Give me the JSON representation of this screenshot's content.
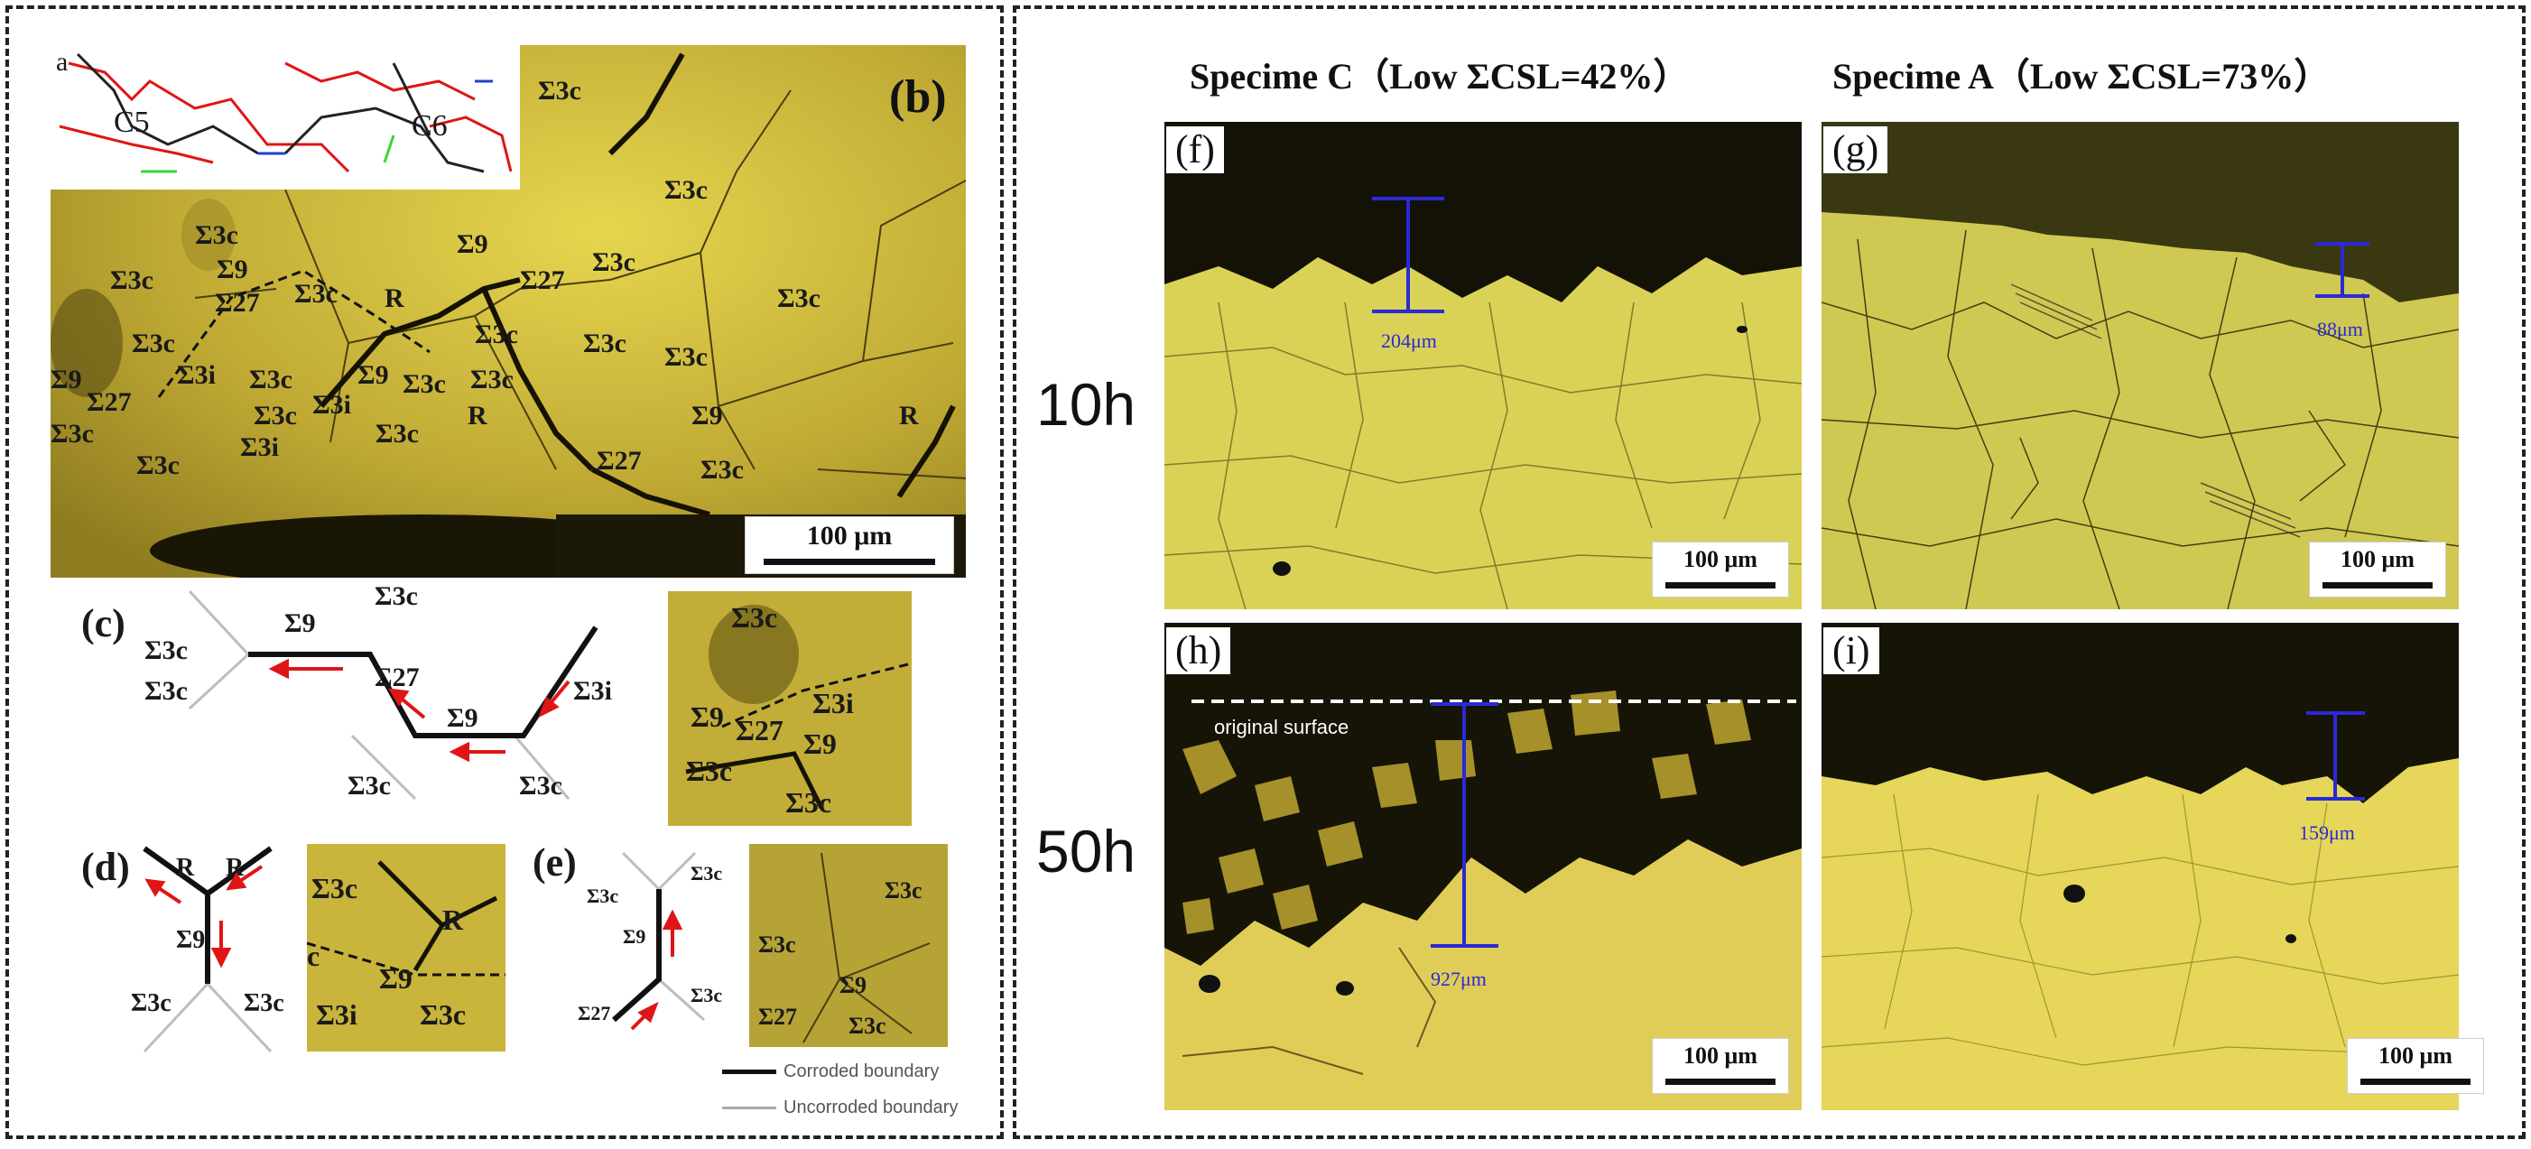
{
  "figure": {
    "left": {
      "panel_a": {
        "letter": "a",
        "labels": [
          "C5",
          "C6"
        ]
      },
      "panel_b": {
        "letter": "(b)",
        "scale": "100 μm",
        "labels": [
          "Σ3c",
          "Σ3c",
          "Σ3c",
          "Σ3c",
          "Σ3c",
          "Σ9",
          "Σ27",
          "Σ3c",
          "R",
          "Σ27",
          "Σ3c",
          "Σ3c",
          "Σ9",
          "Σ3c",
          "Σ3c",
          "Σ3c",
          "Σ3c",
          "Σ3c",
          "Σ3i",
          "Σ3c",
          "Σ3i",
          "Σ9",
          "R",
          "Σ3c",
          "Σ9",
          "Σ27",
          "Σ3c",
          "Σ3i",
          "Σ3c",
          "Σ27",
          "Σ9",
          "Σ3c",
          "R",
          "Σ3c"
        ]
      },
      "panel_c": {
        "letter": "(c)",
        "labels": [
          "Σ3c",
          "Σ9",
          "Σ3c",
          "Σ3c",
          "Σ27",
          "Σ9",
          "Σ3i",
          "Σ3c",
          "Σ3c"
        ],
        "inset_labels": [
          "Σ3c",
          "Σ9",
          "Σ27",
          "Σ3i",
          "Σ9",
          "Σ3c",
          "Σ3c"
        ]
      },
      "panel_d": {
        "letter": "(d)",
        "labels": [
          "R",
          "R",
          "Σ9",
          "Σ3c",
          "Σ3c"
        ],
        "inset_labels": [
          "Σ3c",
          "R",
          "c",
          "Σ9",
          "Σ3i",
          "Σ3c"
        ]
      },
      "panel_e": {
        "letter": "(e)",
        "labels": [
          "Σ3c",
          "Σ3c",
          "Σ9",
          "Σ27",
          "Σ3c"
        ],
        "inset_labels": [
          "Σ3c",
          "Σ3c",
          "Σ9",
          "Σ27",
          "Σ3c"
        ]
      },
      "legend": {
        "corroded": "Corroded boundary",
        "uncorroded": "Uncorroded boundary"
      }
    },
    "right": {
      "col_c_title": "Specime C（Low ΣCSL=42%）",
      "col_a_title": "Specime A（Low ΣCSL=73%）",
      "row1_time": "10h",
      "row2_time": "50h",
      "panel_f": {
        "letter": "(f)",
        "depth": "204μm",
        "scale": "100 μm"
      },
      "panel_g": {
        "letter": "(g)",
        "depth": "88μm",
        "scale": "100 μm"
      },
      "panel_h": {
        "letter": "(h)",
        "depth": "927μm",
        "scale": "100 μm",
        "note": "original surface"
      },
      "panel_i": {
        "letter": "(i)",
        "depth": "159μm",
        "scale": "100 μm"
      }
    }
  },
  "colors": {
    "oxide": "#1c1a08",
    "metal": "#d9cf4c",
    "depth_marker": "#2a2ad6",
    "arrow": "#e01515"
  }
}
